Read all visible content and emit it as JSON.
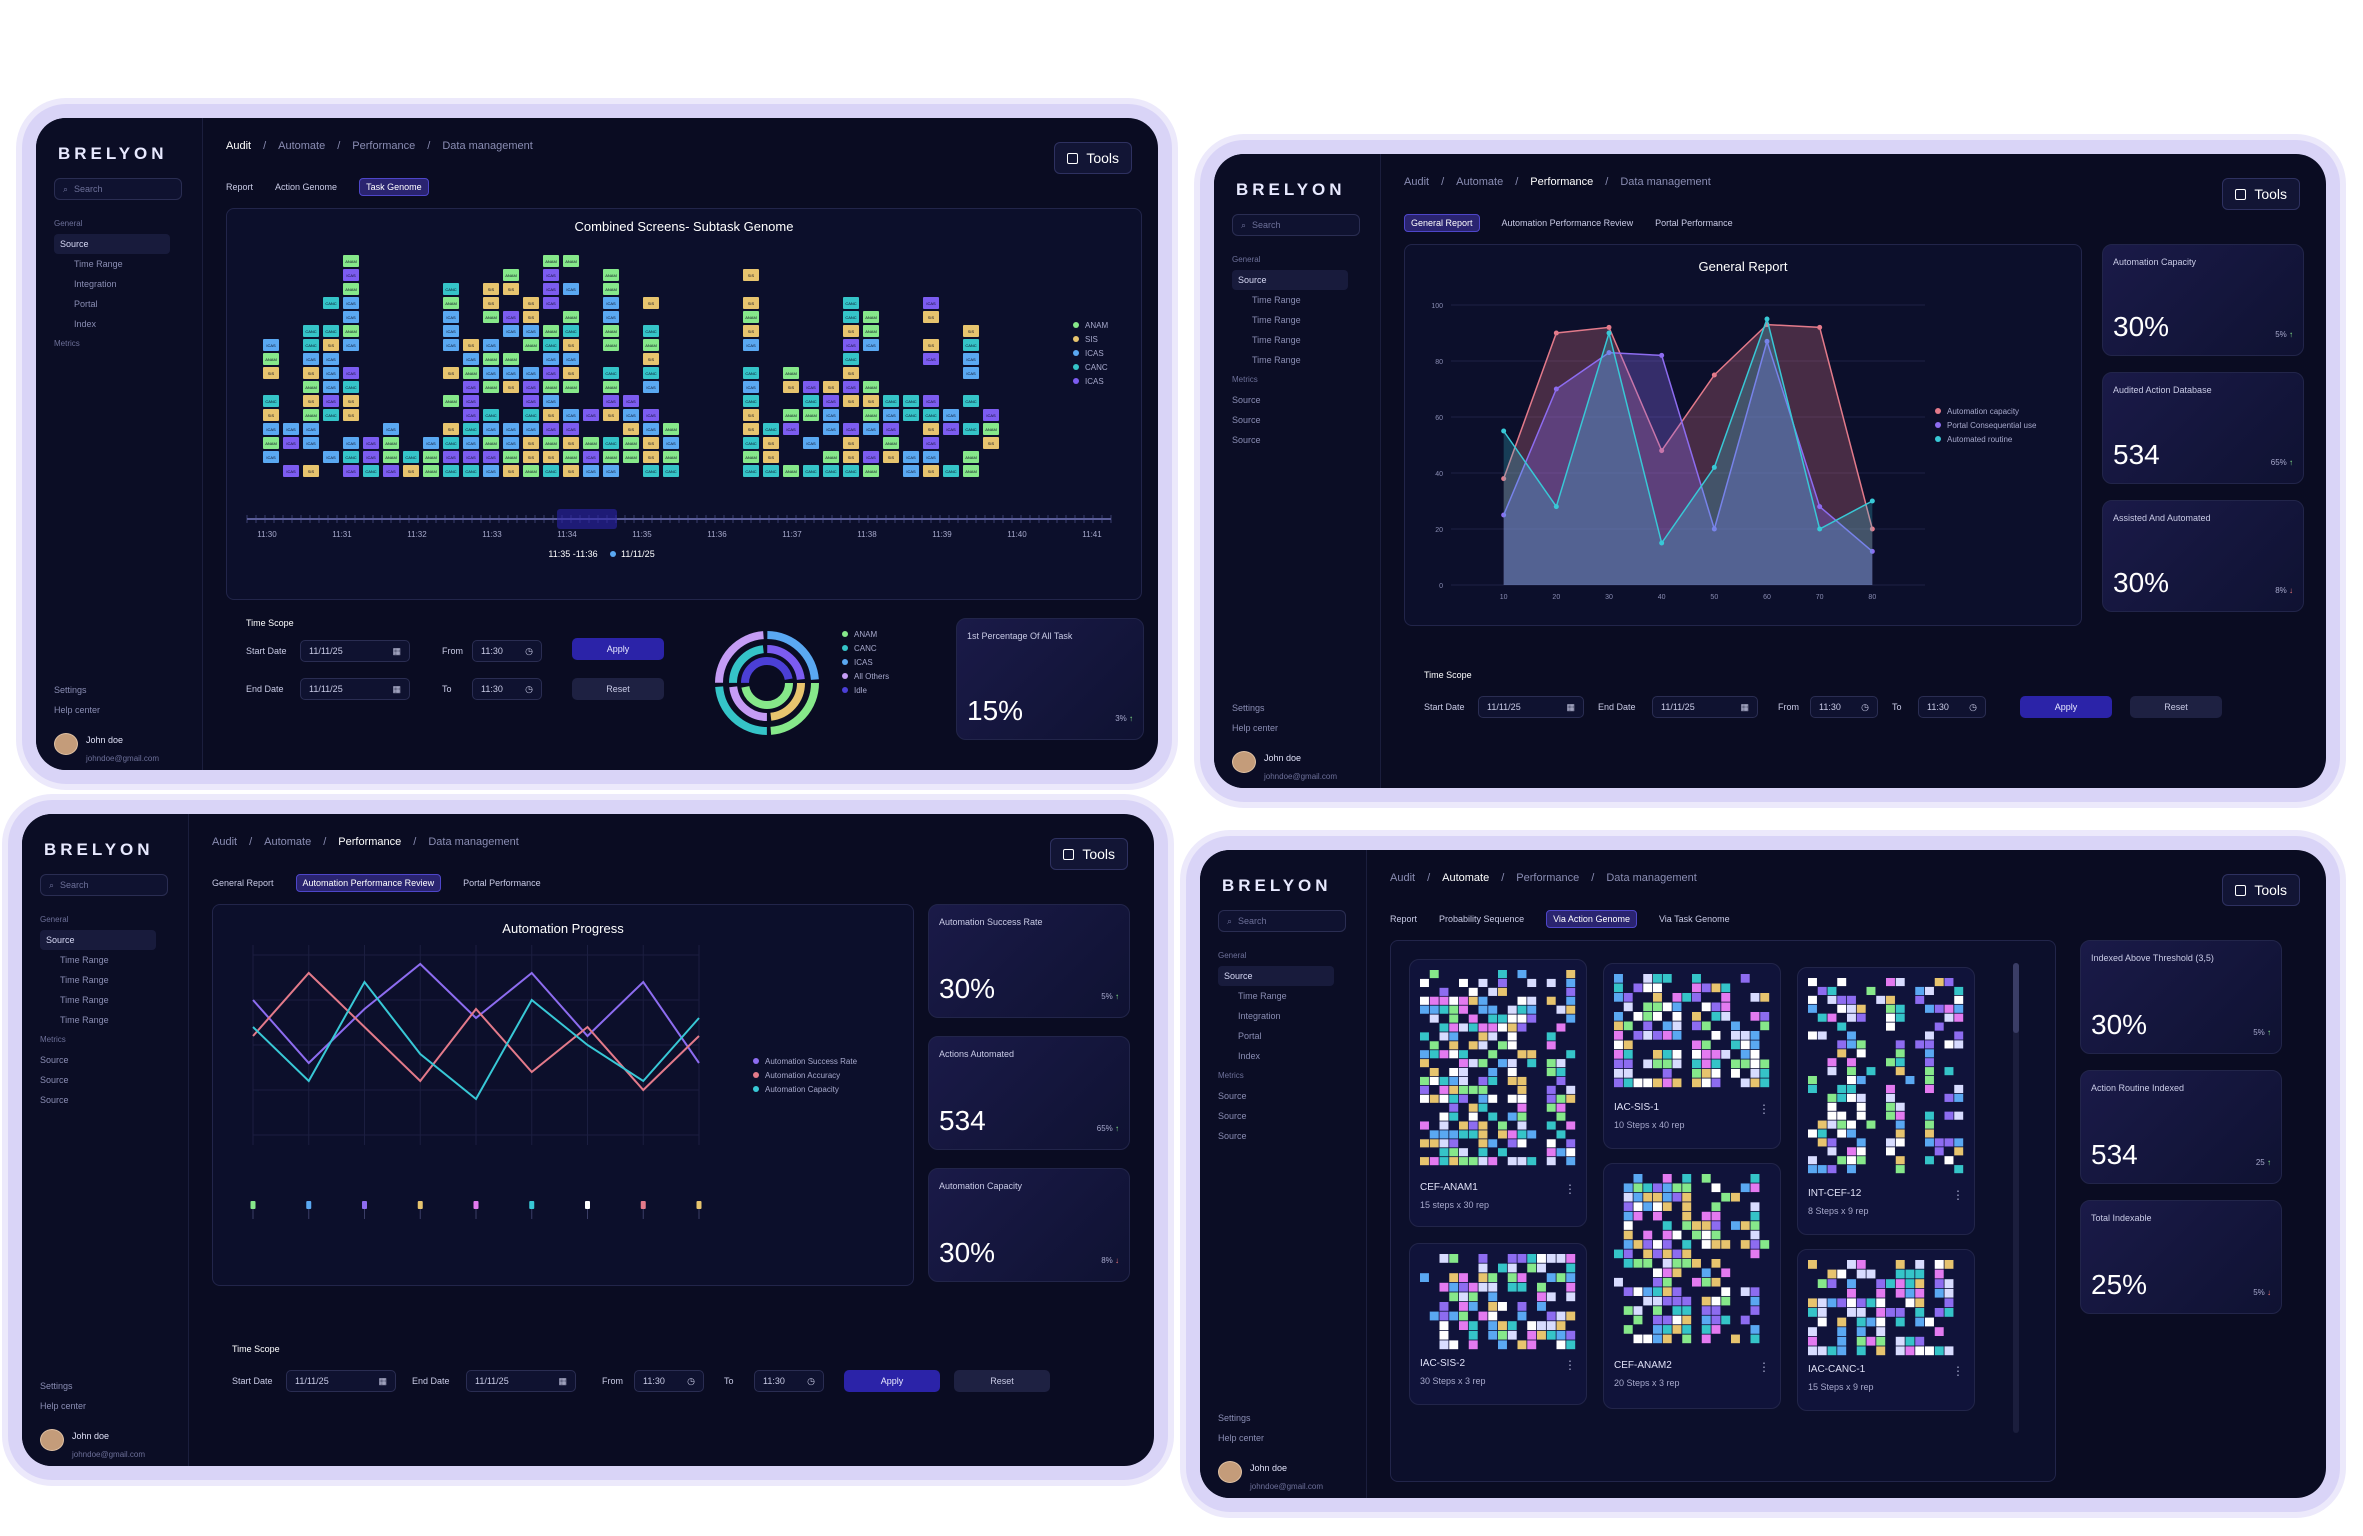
{
  "brand": "BRELYON",
  "search_placeholder": "Search",
  "tools_label": "Tools",
  "help_label": "Help center",
  "settings_label": "Settings",
  "user": {
    "name": "John doe",
    "email": "johndoe@gmail.com"
  },
  "breadcrumb": [
    "Audit",
    "Automate",
    "Performance",
    "Data management"
  ],
  "time_scope": {
    "title": "Time Scope",
    "start_label": "Start Date",
    "end_label": "End Date",
    "start": "11/11/25",
    "end": "11/11/25",
    "from_label": "From",
    "to_label": "To",
    "from": "11:30",
    "to": "11:30",
    "apply": "Apply",
    "reset": "Reset"
  },
  "colors": {
    "anam": "#86e88a",
    "sis": "#e7c46e",
    "icas": "#5aa8f2",
    "canc": "#35c4c8",
    "purple": "#7c5cf0"
  },
  "screen1": {
    "tabs": [
      "Report",
      "Action Genome",
      "Task Genome"
    ],
    "sidebar": {
      "general": "General",
      "source": "Source",
      "items": [
        "Time Range",
        "Integration",
        "Portal",
        "Index"
      ],
      "metrics": "Metrics"
    },
    "chart_title": "Combined Screens- Subtask Genome",
    "legend": [
      "ANAM",
      "SIS",
      "ICAS",
      "CANC",
      "ICAS"
    ],
    "timeline_labels": [
      "11:30",
      "11:31",
      "11:32",
      "11:33",
      "11:34",
      "11:35",
      "11:36",
      "11:37",
      "11:38",
      "11:39",
      "11:40",
      "11:41"
    ],
    "timeline_marker": "11:35 -11:36",
    "timeline_date": "11/11/25",
    "donut_legend": [
      "ANAM",
      "CANC",
      "ICAS",
      "All Others",
      "Idle"
    ],
    "stat": {
      "label": "1st Percentage Of All Task",
      "value": "15%",
      "change": "3%"
    }
  },
  "screen2": {
    "tabs": [
      "General Report",
      "Automation Performance Review",
      "Portal Performance"
    ],
    "sidebar": {
      "general": "General",
      "source": "Source",
      "items": [
        "Time Range",
        "Time Range",
        "Time Range",
        "Time Range"
      ],
      "metrics": "Metrics",
      "metric_items": [
        "Source",
        "Source",
        "Source"
      ]
    },
    "chart_title": "General Report",
    "legend": [
      "Automation capacity",
      "Portal Consequential use",
      "Automated routine"
    ],
    "stats": [
      {
        "label": "Automation Capacity",
        "value": "30%",
        "change": "5%"
      },
      {
        "label": "Audited Action Database",
        "value": "534",
        "change": "65%"
      },
      {
        "label": "Assisted And Automated",
        "value": "30%",
        "change": "8%"
      }
    ]
  },
  "screen3": {
    "tabs": [
      "General Report",
      "Automation Performance Review",
      "Portal Performance"
    ],
    "sidebar": {
      "general": "General",
      "source": "Source",
      "items": [
        "Time Range",
        "Time Range",
        "Time Range",
        "Time Range"
      ],
      "metrics": "Metrics",
      "metric_items": [
        "Source",
        "Source",
        "Source"
      ]
    },
    "chart_title": "Automation Progress",
    "legend": [
      "Automation Success Rate",
      "Automation Accuracy",
      "Automation Capacity"
    ],
    "stats": [
      {
        "label": "Automation Success Rate",
        "value": "30%",
        "change": "5%"
      },
      {
        "label": "Actions Automated",
        "value": "534",
        "change": "65%"
      },
      {
        "label": "Automation Capacity",
        "value": "30%",
        "change": "8%"
      }
    ]
  },
  "screen4": {
    "tabs": [
      "Report",
      "Probability Sequence",
      "Via Action Genome",
      "Via Task Genome"
    ],
    "sidebar": {
      "general": "General",
      "source": "Source",
      "items": [
        "Time Range",
        "Integration",
        "Portal",
        "Index"
      ],
      "metrics": "Metrics",
      "metric_items": [
        "Source",
        "Source",
        "Source"
      ]
    },
    "genomes": [
      {
        "name": "CEF-ANAM1",
        "steps": "15 steps x 30 rep"
      },
      {
        "name": "IAC-SIS-1",
        "steps": "10 Steps x 40 rep"
      },
      {
        "name": "INT-CEF-12",
        "steps": "8 Steps x 9 rep"
      },
      {
        "name": "IAC-SIS-2",
        "steps": "30 Steps x 3 rep"
      },
      {
        "name": "CEF-ANAM2",
        "steps": "20 Steps x 3 rep"
      },
      {
        "name": "IAC-CANC-1",
        "steps": "15 Steps x 9 rep"
      }
    ],
    "stats": [
      {
        "label": "Indexed Above Threshold (3,5)",
        "value": "30%",
        "change": "5%"
      },
      {
        "label": "Action Routine Indexed",
        "value": "534",
        "change": "25"
      },
      {
        "label": "Total Indexable",
        "value": "25%",
        "change": "5%"
      }
    ]
  },
  "chart_data": [
    {
      "type": "area",
      "title": "General Report",
      "x": [
        10,
        20,
        30,
        40,
        50,
        60,
        70,
        80
      ],
      "ylim": [
        0,
        100
      ],
      "series": [
        {
          "name": "Automation capacity",
          "values": [
            38,
            90,
            92,
            48,
            75,
            93,
            92,
            20
          ]
        },
        {
          "name": "Portal Consequential use",
          "values": [
            25,
            70,
            83,
            82,
            20,
            87,
            28,
            12
          ]
        },
        {
          "name": "Automated routine",
          "values": [
            55,
            28,
            90,
            15,
            42,
            95,
            20,
            30
          ]
        }
      ]
    },
    {
      "type": "line",
      "title": "Automation Progress",
      "x": [
        1,
        2,
        3,
        4,
        5,
        6,
        7,
        8,
        9
      ],
      "series": [
        {
          "name": "Automation Success Rate",
          "values": [
            75,
            40,
            70,
            95,
            65,
            90,
            55,
            85,
            40
          ]
        },
        {
          "name": "Automation Accuracy",
          "values": [
            55,
            90,
            60,
            30,
            70,
            35,
            60,
            25,
            55
          ]
        },
        {
          "name": "Automation Capacity",
          "values": [
            60,
            30,
            85,
            45,
            20,
            75,
            50,
            30,
            65
          ]
        }
      ]
    }
  ]
}
